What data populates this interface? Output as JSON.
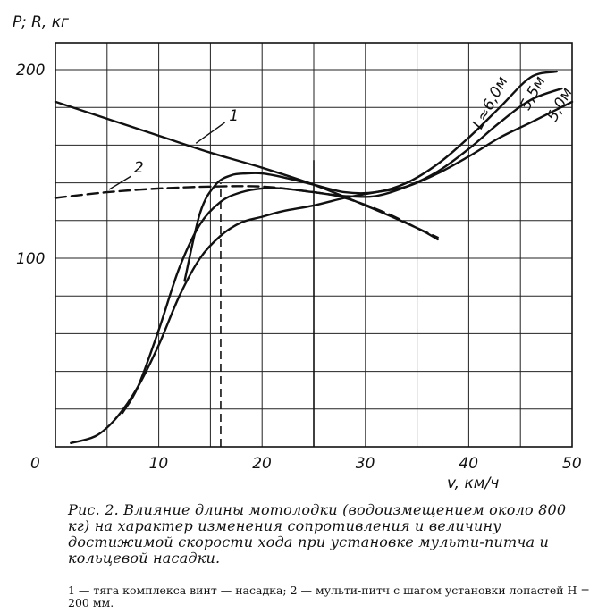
{
  "chart_data": {
    "type": "line",
    "ylabel": "P; R, кг",
    "xlabel": "v, км/ч",
    "xlim": [
      0,
      50
    ],
    "ylim": [
      0,
      200
    ],
    "x_ticks": [
      "0",
      "10",
      "20",
      "30",
      "40",
      "50"
    ],
    "x_tick_values": [
      0,
      10,
      20,
      30,
      40,
      50
    ],
    "y_ticks": [
      "100",
      "200"
    ],
    "y_tick_values": [
      100,
      200
    ],
    "grid": true,
    "series": [
      {
        "name": "1",
        "style": "solid",
        "x": [
          0,
          5,
          10,
          15,
          20,
          25,
          30,
          35,
          37
        ],
        "y": [
          183,
          174,
          165,
          156,
          148,
          139,
          128,
          116,
          110
        ]
      },
      {
        "name": "2",
        "style": "dashed",
        "x": [
          0,
          5,
          10,
          15,
          20,
          25,
          28,
          32,
          35,
          37
        ],
        "y": [
          132,
          135,
          137,
          138,
          138,
          135,
          132,
          124,
          116,
          111
        ]
      },
      {
        "name": "L≈6,0м",
        "style": "solid",
        "x": [
          12.5,
          14,
          15.5,
          17,
          18.5,
          20,
          22,
          25,
          28,
          31,
          34,
          37,
          40,
          43,
          46,
          48.5
        ],
        "y": [
          88,
          124,
          139,
          144,
          145,
          145,
          143,
          139,
          135,
          135,
          140,
          150,
          164,
          180,
          196,
          199
        ]
      },
      {
        "name": "5,5м",
        "style": "solid",
        "x": [
          6.5,
          8,
          10,
          12,
          14,
          16,
          18,
          20,
          22,
          25,
          28,
          31,
          34,
          37,
          40,
          43,
          46,
          49
        ],
        "y": [
          18,
          32,
          62,
          95,
          118,
          130,
          135,
          137,
          137,
          135,
          133,
          133,
          138,
          146,
          158,
          172,
          184,
          190
        ]
      },
      {
        "name": "5,0м",
        "style": "solid",
        "x": [
          1.5,
          4,
          6,
          8,
          10,
          12,
          14,
          16,
          18,
          20,
          22,
          25,
          28,
          31,
          34,
          37,
          40,
          43,
          46,
          50
        ],
        "y": [
          2,
          6,
          16,
          32,
          54,
          80,
          100,
          112,
          119,
          122,
          125,
          128,
          132,
          135,
          138,
          145,
          154,
          164,
          172,
          183
        ]
      }
    ],
    "reference_lines": [
      {
        "style": "dashed",
        "x": 16,
        "y_from": 0,
        "y_to": 140
      },
      {
        "style": "solid",
        "x": 25,
        "y_from": 0,
        "y_to": 152
      }
    ]
  },
  "caption": "Рис. 2. Влияние длины мотолодки (водоизмещением около 800 кг) на характер изменения сопротивления и величину достижимой скорости хода при установке мульти-питча и кольцевой насадки.",
  "legend_text": "1 — тяга комплекса винт — насадка; 2 — мульти-питч с шагом установки лопастей H = 200 мм."
}
